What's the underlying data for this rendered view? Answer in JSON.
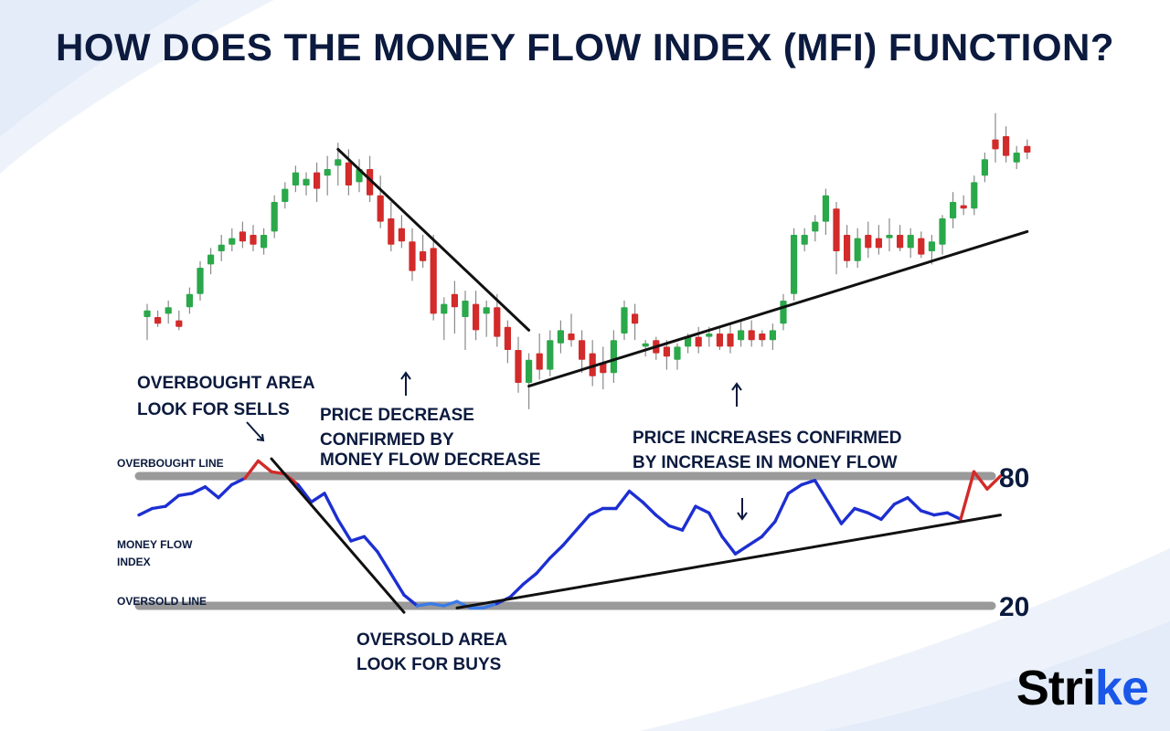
{
  "title": "HOW DOES THE MONEY FLOW INDEX (MFI) FUNCTION?",
  "logo": "Strike",
  "colors": {
    "title": "#0b1a3e",
    "bullish": "#2aa84a",
    "bearish": "#d32a2a",
    "mfi_line": "#1d2fd1",
    "mfi_overbought": "#d32a2a",
    "mfi_oversold": "#3b7ae6",
    "levels": "#9a9a9a",
    "trendlines": "#111111",
    "logo_accent": "#1a56e8"
  },
  "annotations": {
    "overbought_area": [
      "OVERBOUGHT AREA",
      "LOOK FOR SELLS"
    ],
    "price_decrease": [
      "PRICE DECREASE",
      "CONFIRMED BY",
      "MONEY FLOW DECREASE"
    ],
    "price_increase": [
      "PRICE INCREASES CONFIRMED",
      "BY INCREASE IN MONEY FLOW"
    ],
    "oversold_area": [
      "OVERSOLD AREA",
      "LOOK FOR BUYS"
    ],
    "overbought_line": "OVERBOUGHT LINE",
    "money_flow_index": [
      "MONEY FLOW",
      "INDEX"
    ],
    "oversold_line": "OVERSOLD LINE"
  },
  "chart_data": [
    {
      "type": "candlestick",
      "title": "",
      "xlabel": "",
      "ylabel": "",
      "grid": false,
      "ylim": [
        0,
        100
      ],
      "candles": [
        {
          "o": 35,
          "h": 39,
          "l": 28,
          "c": 37
        },
        {
          "o": 35,
          "h": 37,
          "l": 32,
          "c": 33
        },
        {
          "o": 36,
          "h": 40,
          "l": 33,
          "c": 38
        },
        {
          "o": 34,
          "h": 37,
          "l": 31,
          "c": 32
        },
        {
          "o": 38,
          "h": 44,
          "l": 36,
          "c": 42
        },
        {
          "o": 42,
          "h": 52,
          "l": 40,
          "c": 50
        },
        {
          "o": 51,
          "h": 56,
          "l": 48,
          "c": 54
        },
        {
          "o": 55,
          "h": 60,
          "l": 52,
          "c": 57
        },
        {
          "o": 57,
          "h": 62,
          "l": 55,
          "c": 59
        },
        {
          "o": 61,
          "h": 64,
          "l": 56,
          "c": 58
        },
        {
          "o": 60,
          "h": 63,
          "l": 55,
          "c": 57
        },
        {
          "o": 56,
          "h": 62,
          "l": 54,
          "c": 60
        },
        {
          "o": 61,
          "h": 72,
          "l": 59,
          "c": 70
        },
        {
          "o": 70,
          "h": 76,
          "l": 68,
          "c": 74
        },
        {
          "o": 75,
          "h": 81,
          "l": 73,
          "c": 79
        },
        {
          "o": 75,
          "h": 79,
          "l": 72,
          "c": 77
        },
        {
          "o": 79,
          "h": 82,
          "l": 70,
          "c": 74
        },
        {
          "o": 78,
          "h": 84,
          "l": 72,
          "c": 80
        },
        {
          "o": 81,
          "h": 88,
          "l": 75,
          "c": 83
        },
        {
          "o": 82,
          "h": 86,
          "l": 72,
          "c": 75
        },
        {
          "o": 76,
          "h": 83,
          "l": 73,
          "c": 80
        },
        {
          "o": 80,
          "h": 84,
          "l": 70,
          "c": 72
        },
        {
          "o": 72,
          "h": 78,
          "l": 62,
          "c": 64
        },
        {
          "o": 65,
          "h": 70,
          "l": 55,
          "c": 57
        },
        {
          "o": 62,
          "h": 66,
          "l": 56,
          "c": 58
        },
        {
          "o": 58,
          "h": 62,
          "l": 46,
          "c": 49
        },
        {
          "o": 55,
          "h": 60,
          "l": 50,
          "c": 52
        },
        {
          "o": 56,
          "h": 60,
          "l": 34,
          "c": 36
        },
        {
          "o": 36,
          "h": 41,
          "l": 28,
          "c": 39
        },
        {
          "o": 42,
          "h": 46,
          "l": 30,
          "c": 38
        },
        {
          "o": 35,
          "h": 43,
          "l": 25,
          "c": 40
        },
        {
          "o": 39,
          "h": 43,
          "l": 28,
          "c": 31
        },
        {
          "o": 36,
          "h": 40,
          "l": 29,
          "c": 38
        },
        {
          "o": 38,
          "h": 42,
          "l": 26,
          "c": 29
        },
        {
          "o": 32,
          "h": 34,
          "l": 21,
          "c": 25
        },
        {
          "o": 25,
          "h": 29,
          "l": 12,
          "c": 15
        },
        {
          "o": 15,
          "h": 24,
          "l": 7,
          "c": 22
        },
        {
          "o": 24,
          "h": 30,
          "l": 16,
          "c": 19
        },
        {
          "o": 19,
          "h": 31,
          "l": 17,
          "c": 28
        },
        {
          "o": 27,
          "h": 34,
          "l": 24,
          "c": 31
        },
        {
          "o": 30,
          "h": 36,
          "l": 26,
          "c": 28
        },
        {
          "o": 28,
          "h": 31,
          "l": 18,
          "c": 22
        },
        {
          "o": 24,
          "h": 28,
          "l": 14,
          "c": 17
        },
        {
          "o": 21,
          "h": 26,
          "l": 13,
          "c": 18
        },
        {
          "o": 18,
          "h": 31,
          "l": 15,
          "c": 28
        },
        {
          "o": 30,
          "h": 40,
          "l": 28,
          "c": 38
        },
        {
          "o": 36,
          "h": 39,
          "l": 28,
          "c": 33
        },
        {
          "o": 26,
          "h": 28,
          "l": 23,
          "c": 27
        },
        {
          "o": 28,
          "h": 29,
          "l": 22,
          "c": 24
        },
        {
          "o": 26,
          "h": 28,
          "l": 19,
          "c": 23
        },
        {
          "o": 22,
          "h": 27,
          "l": 19,
          "c": 26
        },
        {
          "o": 26,
          "h": 30,
          "l": 24,
          "c": 29
        },
        {
          "o": 29,
          "h": 32,
          "l": 24,
          "c": 26
        },
        {
          "o": 29,
          "h": 32,
          "l": 26,
          "c": 30
        },
        {
          "o": 30,
          "h": 32,
          "l": 25,
          "c": 26
        },
        {
          "o": 30,
          "h": 33,
          "l": 24,
          "c": 26
        },
        {
          "o": 28,
          "h": 34,
          "l": 26,
          "c": 31
        },
        {
          "o": 31,
          "h": 34,
          "l": 26,
          "c": 28
        },
        {
          "o": 30,
          "h": 31,
          "l": 26,
          "c": 28
        },
        {
          "o": 28,
          "h": 33,
          "l": 25,
          "c": 31
        },
        {
          "o": 33,
          "h": 42,
          "l": 31,
          "c": 40
        },
        {
          "o": 42,
          "h": 62,
          "l": 40,
          "c": 60
        },
        {
          "o": 57,
          "h": 62,
          "l": 55,
          "c": 60
        },
        {
          "o": 61,
          "h": 66,
          "l": 58,
          "c": 64
        },
        {
          "o": 64,
          "h": 74,
          "l": 60,
          "c": 72
        },
        {
          "o": 68,
          "h": 70,
          "l": 48,
          "c": 55
        },
        {
          "o": 60,
          "h": 63,
          "l": 50,
          "c": 52
        },
        {
          "o": 52,
          "h": 62,
          "l": 50,
          "c": 59
        },
        {
          "o": 60,
          "h": 64,
          "l": 53,
          "c": 56
        },
        {
          "o": 59,
          "h": 63,
          "l": 54,
          "c": 56
        },
        {
          "o": 59,
          "h": 65,
          "l": 55,
          "c": 60
        },
        {
          "o": 60,
          "h": 63,
          "l": 55,
          "c": 56
        },
        {
          "o": 56,
          "h": 62,
          "l": 53,
          "c": 60
        },
        {
          "o": 59,
          "h": 61,
          "l": 53,
          "c": 54
        },
        {
          "o": 55,
          "h": 60,
          "l": 51,
          "c": 58
        },
        {
          "o": 57,
          "h": 66,
          "l": 54,
          "c": 65
        },
        {
          "o": 65,
          "h": 73,
          "l": 62,
          "c": 70
        },
        {
          "o": 69,
          "h": 72,
          "l": 66,
          "c": 68
        },
        {
          "o": 68,
          "h": 78,
          "l": 66,
          "c": 76
        },
        {
          "o": 78,
          "h": 85,
          "l": 76,
          "c": 83
        },
        {
          "o": 89,
          "h": 97,
          "l": 82,
          "c": 86
        },
        {
          "o": 90,
          "h": 93,
          "l": 82,
          "c": 84
        },
        {
          "o": 82,
          "h": 87,
          "l": 80,
          "c": 85
        },
        {
          "o": 87,
          "h": 89,
          "l": 83,
          "c": 85
        }
      ],
      "trendlines": [
        {
          "label": "downtrend",
          "points": [
            [
              18,
              86
            ],
            [
              36,
              31
            ]
          ]
        },
        {
          "label": "uptrend",
          "points": [
            [
              36,
              14
            ],
            [
              83,
              61
            ]
          ]
        }
      ]
    },
    {
      "type": "line",
      "title": "",
      "xlabel": "",
      "ylabel": "",
      "grid": false,
      "ylim": [
        0,
        100
      ],
      "levels": [
        {
          "name": "OVERBOUGHT LINE",
          "value": 80
        },
        {
          "name": "OVERSOLD LINE",
          "value": 20
        }
      ],
      "series": [
        {
          "name": "MONEY FLOW",
          "values": [
            {
              "x": 0,
              "y": 62
            },
            {
              "x": 1,
              "y": 65
            },
            {
              "x": 2,
              "y": 66
            },
            {
              "x": 3,
              "y": 71
            },
            {
              "x": 4,
              "y": 72
            },
            {
              "x": 5,
              "y": 75
            },
            {
              "x": 6,
              "y": 70
            },
            {
              "x": 7,
              "y": 76
            },
            {
              "x": 8,
              "y": 79
            },
            {
              "x": 9,
              "y": 87
            },
            {
              "x": 10,
              "y": 82
            },
            {
              "x": 11,
              "y": 81
            },
            {
              "x": 12,
              "y": 76
            },
            {
              "x": 13,
              "y": 68
            },
            {
              "x": 14,
              "y": 72
            },
            {
              "x": 15,
              "y": 60
            },
            {
              "x": 16,
              "y": 50
            },
            {
              "x": 17,
              "y": 52
            },
            {
              "x": 18,
              "y": 45
            },
            {
              "x": 19,
              "y": 35
            },
            {
              "x": 20,
              "y": 25
            },
            {
              "x": 21,
              "y": 20
            },
            {
              "x": 22,
              "y": 21
            },
            {
              "x": 23,
              "y": 20
            },
            {
              "x": 24,
              "y": 22
            },
            {
              "x": 25,
              "y": 19
            },
            {
              "x": 26,
              "y": 19
            },
            {
              "x": 27,
              "y": 21
            },
            {
              "x": 28,
              "y": 24
            },
            {
              "x": 29,
              "y": 30
            },
            {
              "x": 30,
              "y": 35
            },
            {
              "x": 31,
              "y": 42
            },
            {
              "x": 32,
              "y": 48
            },
            {
              "x": 33,
              "y": 55
            },
            {
              "x": 34,
              "y": 62
            },
            {
              "x": 35,
              "y": 65
            },
            {
              "x": 36,
              "y": 65
            },
            {
              "x": 37,
              "y": 73
            },
            {
              "x": 38,
              "y": 68
            },
            {
              "x": 39,
              "y": 62
            },
            {
              "x": 40,
              "y": 57
            },
            {
              "x": 41,
              "y": 55
            },
            {
              "x": 42,
              "y": 66
            },
            {
              "x": 43,
              "y": 63
            },
            {
              "x": 44,
              "y": 52
            },
            {
              "x": 45,
              "y": 44
            },
            {
              "x": 46,
              "y": 48
            },
            {
              "x": 47,
              "y": 52
            },
            {
              "x": 48,
              "y": 59
            },
            {
              "x": 49,
              "y": 72
            },
            {
              "x": 50,
              "y": 76
            },
            {
              "x": 51,
              "y": 78
            },
            {
              "x": 52,
              "y": 68
            },
            {
              "x": 53,
              "y": 58
            },
            {
              "x": 54,
              "y": 65
            },
            {
              "x": 55,
              "y": 63
            },
            {
              "x": 56,
              "y": 60
            },
            {
              "x": 57,
              "y": 67
            },
            {
              "x": 58,
              "y": 70
            },
            {
              "x": 59,
              "y": 64
            },
            {
              "x": 60,
              "y": 62
            },
            {
              "x": 61,
              "y": 63
            },
            {
              "x": 62,
              "y": 60
            },
            {
              "x": 63,
              "y": 82
            },
            {
              "x": 64,
              "y": 74
            },
            {
              "x": 65,
              "y": 80
            }
          ]
        }
      ],
      "trendlines": [
        {
          "label": "downtrend",
          "points": [
            [
              10,
              88
            ],
            [
              20,
              17
            ]
          ]
        },
        {
          "label": "uptrend",
          "points": [
            [
              24,
              19
            ],
            [
              65,
              62
            ]
          ]
        }
      ]
    }
  ]
}
